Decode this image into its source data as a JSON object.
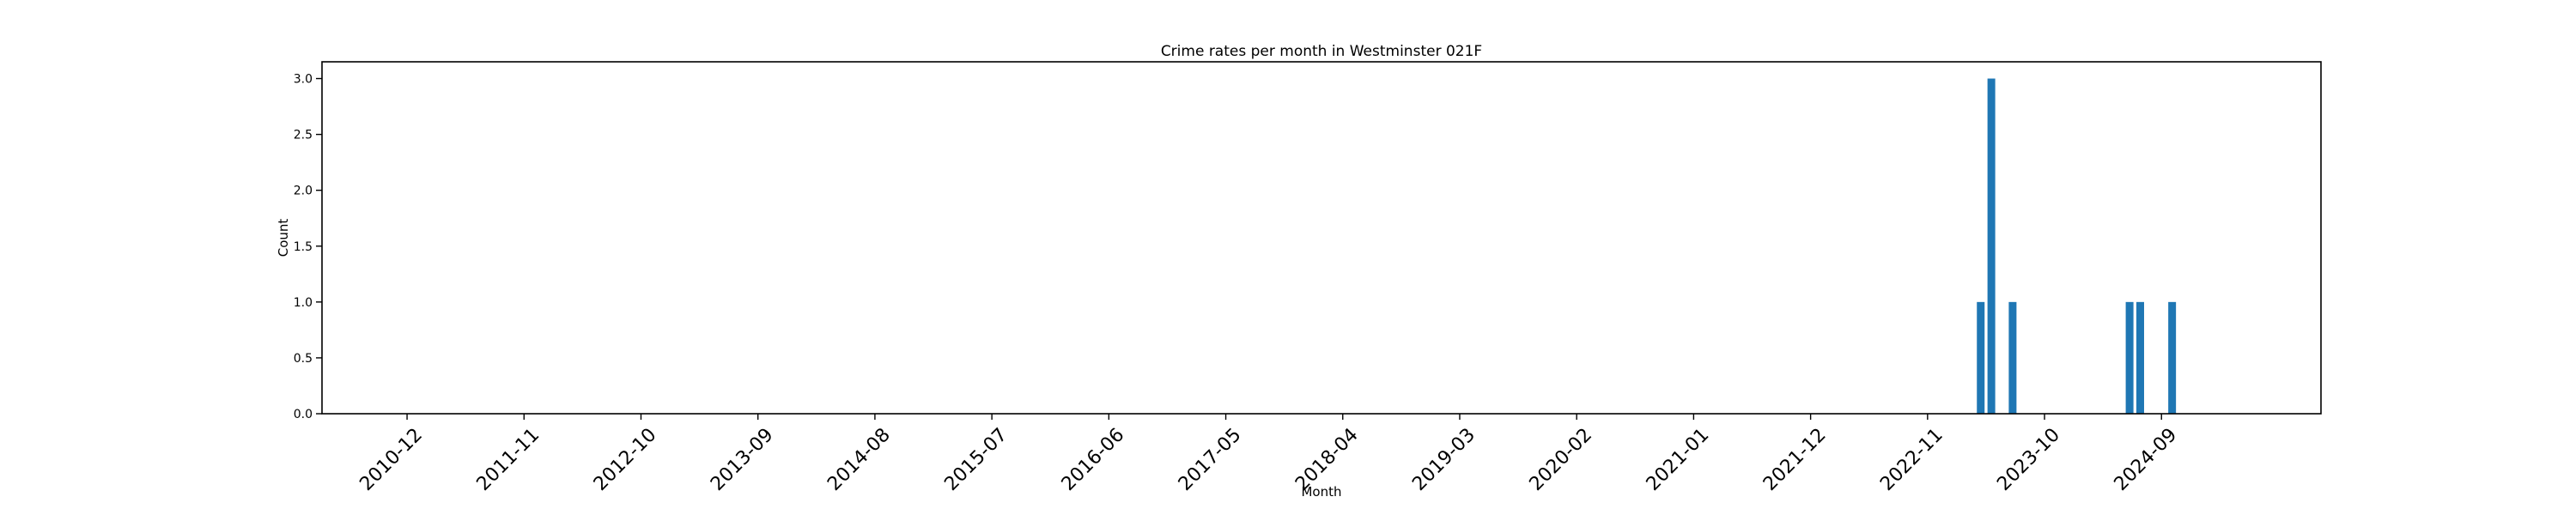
{
  "chart_data": {
    "type": "bar",
    "title": "Crime rates per month in Westminster 021F",
    "xlabel": "Month",
    "ylabel": "Count",
    "ylim": [
      0,
      3.15
    ],
    "yticks": [
      0.0,
      0.5,
      1.0,
      1.5,
      2.0,
      2.5,
      3.0
    ],
    "ytick_labels": [
      "0.0",
      "0.5",
      "1.0",
      "1.5",
      "2.0",
      "2.5",
      "3.0"
    ],
    "xlim": [
      "2010-04",
      "2025-12"
    ],
    "xtick_labels": [
      "2010-12",
      "2011-11",
      "2012-10",
      "2013-09",
      "2014-08",
      "2015-07",
      "2016-06",
      "2017-05",
      "2018-04",
      "2019-03",
      "2020-02",
      "2021-01",
      "2021-12",
      "2022-11",
      "2023-10",
      "2024-09"
    ],
    "grid": false,
    "legend": false,
    "bar_color": "#1f77b4",
    "categories": [
      "2023-04",
      "2023-05",
      "2023-07",
      "2024-06",
      "2024-07",
      "2024-10"
    ],
    "values": [
      1,
      3,
      1,
      1,
      1,
      1
    ]
  }
}
